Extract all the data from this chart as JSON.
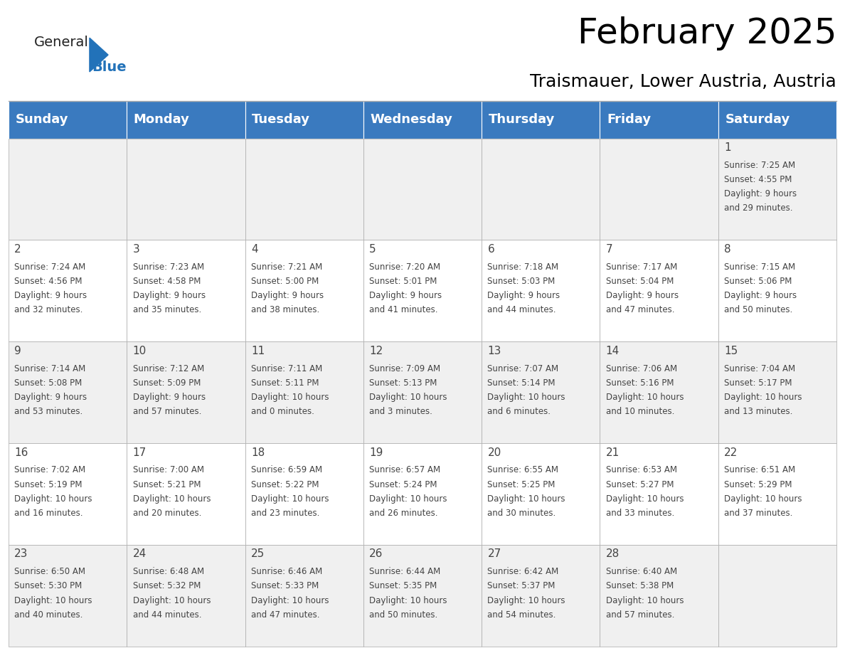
{
  "title": "February 2025",
  "subtitle": "Traismauer, Lower Austria, Austria",
  "header_color": "#3a7abf",
  "header_text_color": "#ffffff",
  "cell_bg_odd": "#f0f0f0",
  "cell_bg_even": "#ffffff",
  "day_headers": [
    "Sunday",
    "Monday",
    "Tuesday",
    "Wednesday",
    "Thursday",
    "Friday",
    "Saturday"
  ],
  "title_fontsize": 36,
  "subtitle_fontsize": 18,
  "header_fontsize": 13,
  "cell_day_fontsize": 11,
  "cell_info_fontsize": 8.5,
  "days": [
    {
      "day": 1,
      "col": 6,
      "row": 0,
      "sunrise": "7:25 AM",
      "sunset": "4:55 PM",
      "daylight_hours": 9,
      "daylight_minutes": 29
    },
    {
      "day": 2,
      "col": 0,
      "row": 1,
      "sunrise": "7:24 AM",
      "sunset": "4:56 PM",
      "daylight_hours": 9,
      "daylight_minutes": 32
    },
    {
      "day": 3,
      "col": 1,
      "row": 1,
      "sunrise": "7:23 AM",
      "sunset": "4:58 PM",
      "daylight_hours": 9,
      "daylight_minutes": 35
    },
    {
      "day": 4,
      "col": 2,
      "row": 1,
      "sunrise": "7:21 AM",
      "sunset": "5:00 PM",
      "daylight_hours": 9,
      "daylight_minutes": 38
    },
    {
      "day": 5,
      "col": 3,
      "row": 1,
      "sunrise": "7:20 AM",
      "sunset": "5:01 PM",
      "daylight_hours": 9,
      "daylight_minutes": 41
    },
    {
      "day": 6,
      "col": 4,
      "row": 1,
      "sunrise": "7:18 AM",
      "sunset": "5:03 PM",
      "daylight_hours": 9,
      "daylight_minutes": 44
    },
    {
      "day": 7,
      "col": 5,
      "row": 1,
      "sunrise": "7:17 AM",
      "sunset": "5:04 PM",
      "daylight_hours": 9,
      "daylight_minutes": 47
    },
    {
      "day": 8,
      "col": 6,
      "row": 1,
      "sunrise": "7:15 AM",
      "sunset": "5:06 PM",
      "daylight_hours": 9,
      "daylight_minutes": 50
    },
    {
      "day": 9,
      "col": 0,
      "row": 2,
      "sunrise": "7:14 AM",
      "sunset": "5:08 PM",
      "daylight_hours": 9,
      "daylight_minutes": 53
    },
    {
      "day": 10,
      "col": 1,
      "row": 2,
      "sunrise": "7:12 AM",
      "sunset": "5:09 PM",
      "daylight_hours": 9,
      "daylight_minutes": 57
    },
    {
      "day": 11,
      "col": 2,
      "row": 2,
      "sunrise": "7:11 AM",
      "sunset": "5:11 PM",
      "daylight_hours": 10,
      "daylight_minutes": 0
    },
    {
      "day": 12,
      "col": 3,
      "row": 2,
      "sunrise": "7:09 AM",
      "sunset": "5:13 PM",
      "daylight_hours": 10,
      "daylight_minutes": 3
    },
    {
      "day": 13,
      "col": 4,
      "row": 2,
      "sunrise": "7:07 AM",
      "sunset": "5:14 PM",
      "daylight_hours": 10,
      "daylight_minutes": 6
    },
    {
      "day": 14,
      "col": 5,
      "row": 2,
      "sunrise": "7:06 AM",
      "sunset": "5:16 PM",
      "daylight_hours": 10,
      "daylight_minutes": 10
    },
    {
      "day": 15,
      "col": 6,
      "row": 2,
      "sunrise": "7:04 AM",
      "sunset": "5:17 PM",
      "daylight_hours": 10,
      "daylight_minutes": 13
    },
    {
      "day": 16,
      "col": 0,
      "row": 3,
      "sunrise": "7:02 AM",
      "sunset": "5:19 PM",
      "daylight_hours": 10,
      "daylight_minutes": 16
    },
    {
      "day": 17,
      "col": 1,
      "row": 3,
      "sunrise": "7:00 AM",
      "sunset": "5:21 PM",
      "daylight_hours": 10,
      "daylight_minutes": 20
    },
    {
      "day": 18,
      "col": 2,
      "row": 3,
      "sunrise": "6:59 AM",
      "sunset": "5:22 PM",
      "daylight_hours": 10,
      "daylight_minutes": 23
    },
    {
      "day": 19,
      "col": 3,
      "row": 3,
      "sunrise": "6:57 AM",
      "sunset": "5:24 PM",
      "daylight_hours": 10,
      "daylight_minutes": 26
    },
    {
      "day": 20,
      "col": 4,
      "row": 3,
      "sunrise": "6:55 AM",
      "sunset": "5:25 PM",
      "daylight_hours": 10,
      "daylight_minutes": 30
    },
    {
      "day": 21,
      "col": 5,
      "row": 3,
      "sunrise": "6:53 AM",
      "sunset": "5:27 PM",
      "daylight_hours": 10,
      "daylight_minutes": 33
    },
    {
      "day": 22,
      "col": 6,
      "row": 3,
      "sunrise": "6:51 AM",
      "sunset": "5:29 PM",
      "daylight_hours": 10,
      "daylight_minutes": 37
    },
    {
      "day": 23,
      "col": 0,
      "row": 4,
      "sunrise": "6:50 AM",
      "sunset": "5:30 PM",
      "daylight_hours": 10,
      "daylight_minutes": 40
    },
    {
      "day": 24,
      "col": 1,
      "row": 4,
      "sunrise": "6:48 AM",
      "sunset": "5:32 PM",
      "daylight_hours": 10,
      "daylight_minutes": 44
    },
    {
      "day": 25,
      "col": 2,
      "row": 4,
      "sunrise": "6:46 AM",
      "sunset": "5:33 PM",
      "daylight_hours": 10,
      "daylight_minutes": 47
    },
    {
      "day": 26,
      "col": 3,
      "row": 4,
      "sunrise": "6:44 AM",
      "sunset": "5:35 PM",
      "daylight_hours": 10,
      "daylight_minutes": 50
    },
    {
      "day": 27,
      "col": 4,
      "row": 4,
      "sunrise": "6:42 AM",
      "sunset": "5:37 PM",
      "daylight_hours": 10,
      "daylight_minutes": 54
    },
    {
      "day": 28,
      "col": 5,
      "row": 4,
      "sunrise": "6:40 AM",
      "sunset": "5:38 PM",
      "daylight_hours": 10,
      "daylight_minutes": 57
    }
  ],
  "num_rows": 5,
  "num_cols": 7,
  "line_color": "#aaaaaa",
  "text_color": "#444444",
  "logo_general_color": "#222222",
  "logo_blue_color": "#2272b9"
}
